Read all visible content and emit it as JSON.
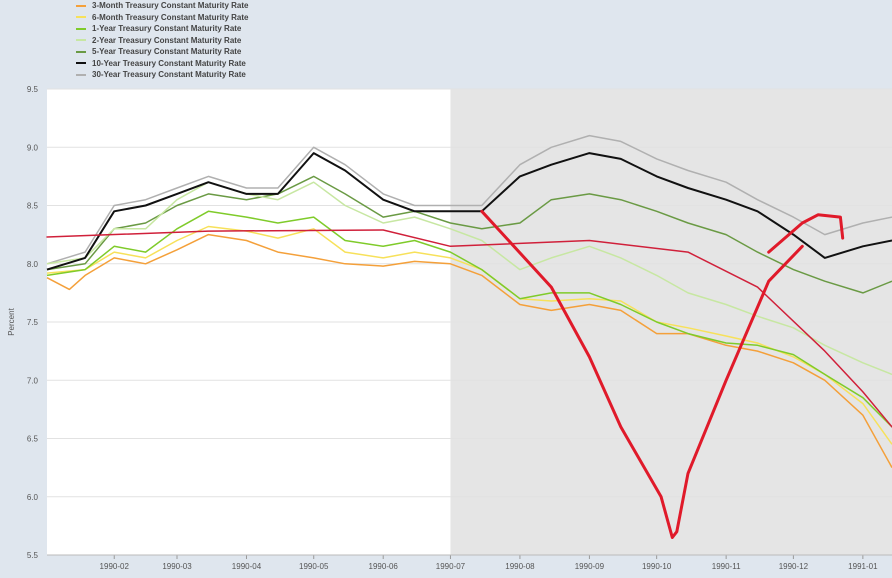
{
  "chart_data": {
    "type": "line",
    "ylabel": "Percent",
    "ylim": [
      5.5,
      9.5
    ],
    "y_ticks": [
      "5.5",
      "6.0",
      "6.5",
      "7.0",
      "7.5",
      "8.0",
      "8.5",
      "9.0",
      "9.5"
    ],
    "x_range": [
      "1990-01-02",
      "1991-01-14"
    ],
    "x_ticks": [
      "1990-02",
      "1990-03",
      "1990-04",
      "1990-05",
      "1990-06",
      "1990-07",
      "1990-08",
      "1990-09",
      "1990-10",
      "1990-11",
      "1990-12",
      "1991-01"
    ],
    "recession_shading": {
      "start": "1990-07-01",
      "end": "1991-01-14"
    },
    "grid": true,
    "legend_position": "top-left",
    "series": [
      {
        "name": "3-Month Treasury Constant Maturity Rate",
        "color": "#f4a03a",
        "points": [
          [
            "1990-01-02",
            7.88
          ],
          [
            "1990-01-12",
            7.78
          ],
          [
            "1990-01-19",
            7.9
          ],
          [
            "1990-02-01",
            8.05
          ],
          [
            "1990-02-15",
            8.0
          ],
          [
            "1990-03-01",
            8.12
          ],
          [
            "1990-03-15",
            8.25
          ],
          [
            "1990-04-01",
            8.2
          ],
          [
            "1990-04-15",
            8.1
          ],
          [
            "1990-05-01",
            8.05
          ],
          [
            "1990-05-15",
            8.0
          ],
          [
            "1990-06-01",
            7.98
          ],
          [
            "1990-06-15",
            8.02
          ],
          [
            "1990-07-01",
            8.0
          ],
          [
            "1990-07-15",
            7.9
          ],
          [
            "1990-08-01",
            7.65
          ],
          [
            "1990-08-15",
            7.6
          ],
          [
            "1990-09-01",
            7.65
          ],
          [
            "1990-09-15",
            7.6
          ],
          [
            "1990-10-01",
            7.4
          ],
          [
            "1990-10-15",
            7.4
          ],
          [
            "1990-11-01",
            7.3
          ],
          [
            "1990-11-15",
            7.25
          ],
          [
            "1990-12-01",
            7.15
          ],
          [
            "1990-12-15",
            7.0
          ],
          [
            "1991-01-01",
            6.7
          ],
          [
            "1991-01-14",
            6.25
          ]
        ]
      },
      {
        "name": "6-Month Treasury Constant Maturity Rate",
        "color": "#f7e15a",
        "points": [
          [
            "1990-01-02",
            7.92
          ],
          [
            "1990-01-19",
            7.95
          ],
          [
            "1990-02-01",
            8.1
          ],
          [
            "1990-02-15",
            8.05
          ],
          [
            "1990-03-01",
            8.2
          ],
          [
            "1990-03-15",
            8.32
          ],
          [
            "1990-04-01",
            8.28
          ],
          [
            "1990-04-15",
            8.22
          ],
          [
            "1990-05-01",
            8.3
          ],
          [
            "1990-05-15",
            8.1
          ],
          [
            "1990-06-01",
            8.05
          ],
          [
            "1990-06-15",
            8.1
          ],
          [
            "1990-07-01",
            8.05
          ],
          [
            "1990-07-15",
            7.95
          ],
          [
            "1990-08-01",
            7.7
          ],
          [
            "1990-08-15",
            7.68
          ],
          [
            "1990-09-01",
            7.7
          ],
          [
            "1990-09-15",
            7.68
          ],
          [
            "1990-10-01",
            7.5
          ],
          [
            "1990-10-15",
            7.45
          ],
          [
            "1990-11-01",
            7.38
          ],
          [
            "1990-11-15",
            7.32
          ],
          [
            "1990-12-01",
            7.2
          ],
          [
            "1990-12-15",
            7.05
          ],
          [
            "1991-01-01",
            6.8
          ],
          [
            "1991-01-14",
            6.45
          ]
        ]
      },
      {
        "name": "1-Year Treasury Constant Maturity Rate",
        "color": "#7fcb2a",
        "points": [
          [
            "1990-01-02",
            7.9
          ],
          [
            "1990-01-19",
            7.95
          ],
          [
            "1990-02-01",
            8.15
          ],
          [
            "1990-02-15",
            8.1
          ],
          [
            "1990-03-01",
            8.3
          ],
          [
            "1990-03-15",
            8.45
          ],
          [
            "1990-04-01",
            8.4
          ],
          [
            "1990-04-15",
            8.35
          ],
          [
            "1990-05-01",
            8.4
          ],
          [
            "1990-05-15",
            8.2
          ],
          [
            "1990-06-01",
            8.15
          ],
          [
            "1990-06-15",
            8.2
          ],
          [
            "1990-07-01",
            8.1
          ],
          [
            "1990-07-15",
            7.95
          ],
          [
            "1990-08-01",
            7.7
          ],
          [
            "1990-08-15",
            7.75
          ],
          [
            "1990-09-01",
            7.75
          ],
          [
            "1990-09-15",
            7.65
          ],
          [
            "1990-10-01",
            7.5
          ],
          [
            "1990-10-15",
            7.4
          ],
          [
            "1990-11-01",
            7.32
          ],
          [
            "1990-11-15",
            7.3
          ],
          [
            "1990-12-01",
            7.22
          ],
          [
            "1990-12-15",
            7.05
          ],
          [
            "1991-01-01",
            6.85
          ],
          [
            "1991-01-14",
            6.6
          ]
        ]
      },
      {
        "name": "2-Year Treasury Constant Maturity Rate",
        "color": "#c7e7a2",
        "points": [
          [
            "1990-01-02",
            8.0
          ],
          [
            "1990-01-19",
            8.05
          ],
          [
            "1990-02-01",
            8.3
          ],
          [
            "1990-02-15",
            8.3
          ],
          [
            "1990-03-01",
            8.55
          ],
          [
            "1990-03-15",
            8.7
          ],
          [
            "1990-04-01",
            8.6
          ],
          [
            "1990-04-15",
            8.55
          ],
          [
            "1990-05-01",
            8.7
          ],
          [
            "1990-05-15",
            8.5
          ],
          [
            "1990-06-01",
            8.35
          ],
          [
            "1990-06-15",
            8.4
          ],
          [
            "1990-07-01",
            8.3
          ],
          [
            "1990-07-15",
            8.2
          ],
          [
            "1990-08-01",
            7.95
          ],
          [
            "1990-08-15",
            8.05
          ],
          [
            "1990-09-01",
            8.15
          ],
          [
            "1990-09-15",
            8.05
          ],
          [
            "1990-10-01",
            7.9
          ],
          [
            "1990-10-15",
            7.75
          ],
          [
            "1990-11-01",
            7.65
          ],
          [
            "1990-11-15",
            7.55
          ],
          [
            "1990-12-01",
            7.45
          ],
          [
            "1990-12-15",
            7.3
          ],
          [
            "1991-01-01",
            7.15
          ],
          [
            "1991-01-14",
            7.05
          ]
        ]
      },
      {
        "name": "5-Year Treasury Constant Maturity Rate",
        "color": "#6a9a44",
        "points": [
          [
            "1990-01-02",
            7.95
          ],
          [
            "1990-01-19",
            8.0
          ],
          [
            "1990-02-01",
            8.3
          ],
          [
            "1990-02-15",
            8.35
          ],
          [
            "1990-03-01",
            8.5
          ],
          [
            "1990-03-15",
            8.6
          ],
          [
            "1990-04-01",
            8.55
          ],
          [
            "1990-04-15",
            8.6
          ],
          [
            "1990-05-01",
            8.75
          ],
          [
            "1990-05-15",
            8.6
          ],
          [
            "1990-06-01",
            8.4
          ],
          [
            "1990-06-15",
            8.45
          ],
          [
            "1990-07-01",
            8.35
          ],
          [
            "1990-07-15",
            8.3
          ],
          [
            "1990-08-01",
            8.35
          ],
          [
            "1990-08-15",
            8.55
          ],
          [
            "1990-09-01",
            8.6
          ],
          [
            "1990-09-15",
            8.55
          ],
          [
            "1990-10-01",
            8.45
          ],
          [
            "1990-10-15",
            8.35
          ],
          [
            "1990-11-01",
            8.25
          ],
          [
            "1990-11-15",
            8.1
          ],
          [
            "1990-12-01",
            7.95
          ],
          [
            "1990-12-15",
            7.85
          ],
          [
            "1991-01-01",
            7.75
          ],
          [
            "1991-01-14",
            7.85
          ]
        ]
      },
      {
        "name": "10-Year Treasury Constant Maturity Rate",
        "color": "#111111",
        "points": [
          [
            "1990-01-02",
            7.95
          ],
          [
            "1990-01-19",
            8.05
          ],
          [
            "1990-02-01",
            8.45
          ],
          [
            "1990-02-15",
            8.5
          ],
          [
            "1990-03-01",
            8.6
          ],
          [
            "1990-03-15",
            8.7
          ],
          [
            "1990-04-01",
            8.6
          ],
          [
            "1990-04-15",
            8.6
          ],
          [
            "1990-05-01",
            8.95
          ],
          [
            "1990-05-15",
            8.8
          ],
          [
            "1990-06-01",
            8.55
          ],
          [
            "1990-06-15",
            8.45
          ],
          [
            "1990-07-01",
            8.45
          ],
          [
            "1990-07-15",
            8.45
          ],
          [
            "1990-08-01",
            8.75
          ],
          [
            "1990-08-15",
            8.85
          ],
          [
            "1990-09-01",
            8.95
          ],
          [
            "1990-09-15",
            8.9
          ],
          [
            "1990-10-01",
            8.75
          ],
          [
            "1990-10-15",
            8.65
          ],
          [
            "1990-11-01",
            8.55
          ],
          [
            "1990-11-15",
            8.45
          ],
          [
            "1990-12-01",
            8.25
          ],
          [
            "1990-12-15",
            8.05
          ],
          [
            "1991-01-01",
            8.15
          ],
          [
            "1991-01-14",
            8.2
          ]
        ]
      },
      {
        "name": "30-Year Treasury Constant Maturity Rate",
        "color": "#b0b0b0",
        "points": [
          [
            "1990-01-02",
            8.0
          ],
          [
            "1990-01-19",
            8.1
          ],
          [
            "1990-02-01",
            8.5
          ],
          [
            "1990-02-15",
            8.55
          ],
          [
            "1990-03-01",
            8.65
          ],
          [
            "1990-03-15",
            8.75
          ],
          [
            "1990-04-01",
            8.65
          ],
          [
            "1990-04-15",
            8.65
          ],
          [
            "1990-05-01",
            9.0
          ],
          [
            "1990-05-15",
            8.85
          ],
          [
            "1990-06-01",
            8.6
          ],
          [
            "1990-06-15",
            8.5
          ],
          [
            "1990-07-01",
            8.5
          ],
          [
            "1990-07-15",
            8.5
          ],
          [
            "1990-08-01",
            8.85
          ],
          [
            "1990-08-15",
            9.0
          ],
          [
            "1990-09-01",
            9.1
          ],
          [
            "1990-09-15",
            9.05
          ],
          [
            "1990-10-01",
            8.9
          ],
          [
            "1990-10-15",
            8.8
          ],
          [
            "1990-11-01",
            8.7
          ],
          [
            "1990-11-15",
            8.55
          ],
          [
            "1990-12-01",
            8.4
          ],
          [
            "1990-12-15",
            8.25
          ],
          [
            "1991-01-01",
            8.35
          ],
          [
            "1991-01-14",
            8.4
          ]
        ]
      }
    ],
    "annotations": [
      {
        "name": "red-trend-line",
        "color": "#d0203a",
        "points": [
          [
            "1990-01-02",
            8.23
          ],
          [
            "1990-03-15",
            8.28
          ],
          [
            "1990-06-01",
            8.29
          ],
          [
            "1990-07-01",
            8.15
          ],
          [
            "1990-09-01",
            8.2
          ],
          [
            "1990-10-15",
            8.1
          ],
          [
            "1990-11-15",
            7.8
          ],
          [
            "1990-12-15",
            7.25
          ],
          [
            "1991-01-01",
            6.9
          ],
          [
            "1991-01-14",
            6.6
          ]
        ]
      },
      {
        "name": "red-hand-drawn-v",
        "color": "#e01a2a",
        "points": [
          [
            "1990-07-15",
            8.45
          ],
          [
            "1990-08-15",
            7.8
          ],
          [
            "1990-09-01",
            7.2
          ],
          [
            "1990-09-15",
            6.6
          ],
          [
            "1990-10-03",
            6.0
          ],
          [
            "1990-10-08",
            5.65
          ],
          [
            "1990-10-10",
            5.7
          ],
          [
            "1990-10-15",
            6.2
          ],
          [
            "1990-11-01",
            7.0
          ],
          [
            "1990-11-20",
            7.85
          ],
          [
            "1990-12-05",
            8.15
          ]
        ]
      },
      {
        "name": "red-hand-drawn-arrowhead",
        "color": "#e01a2a",
        "points": [
          [
            "1990-11-20",
            8.1
          ],
          [
            "1990-12-05",
            8.35
          ],
          [
            "1990-12-12",
            8.42
          ],
          [
            "1990-12-22",
            8.4
          ],
          [
            "1990-12-23",
            8.22
          ]
        ]
      }
    ]
  }
}
